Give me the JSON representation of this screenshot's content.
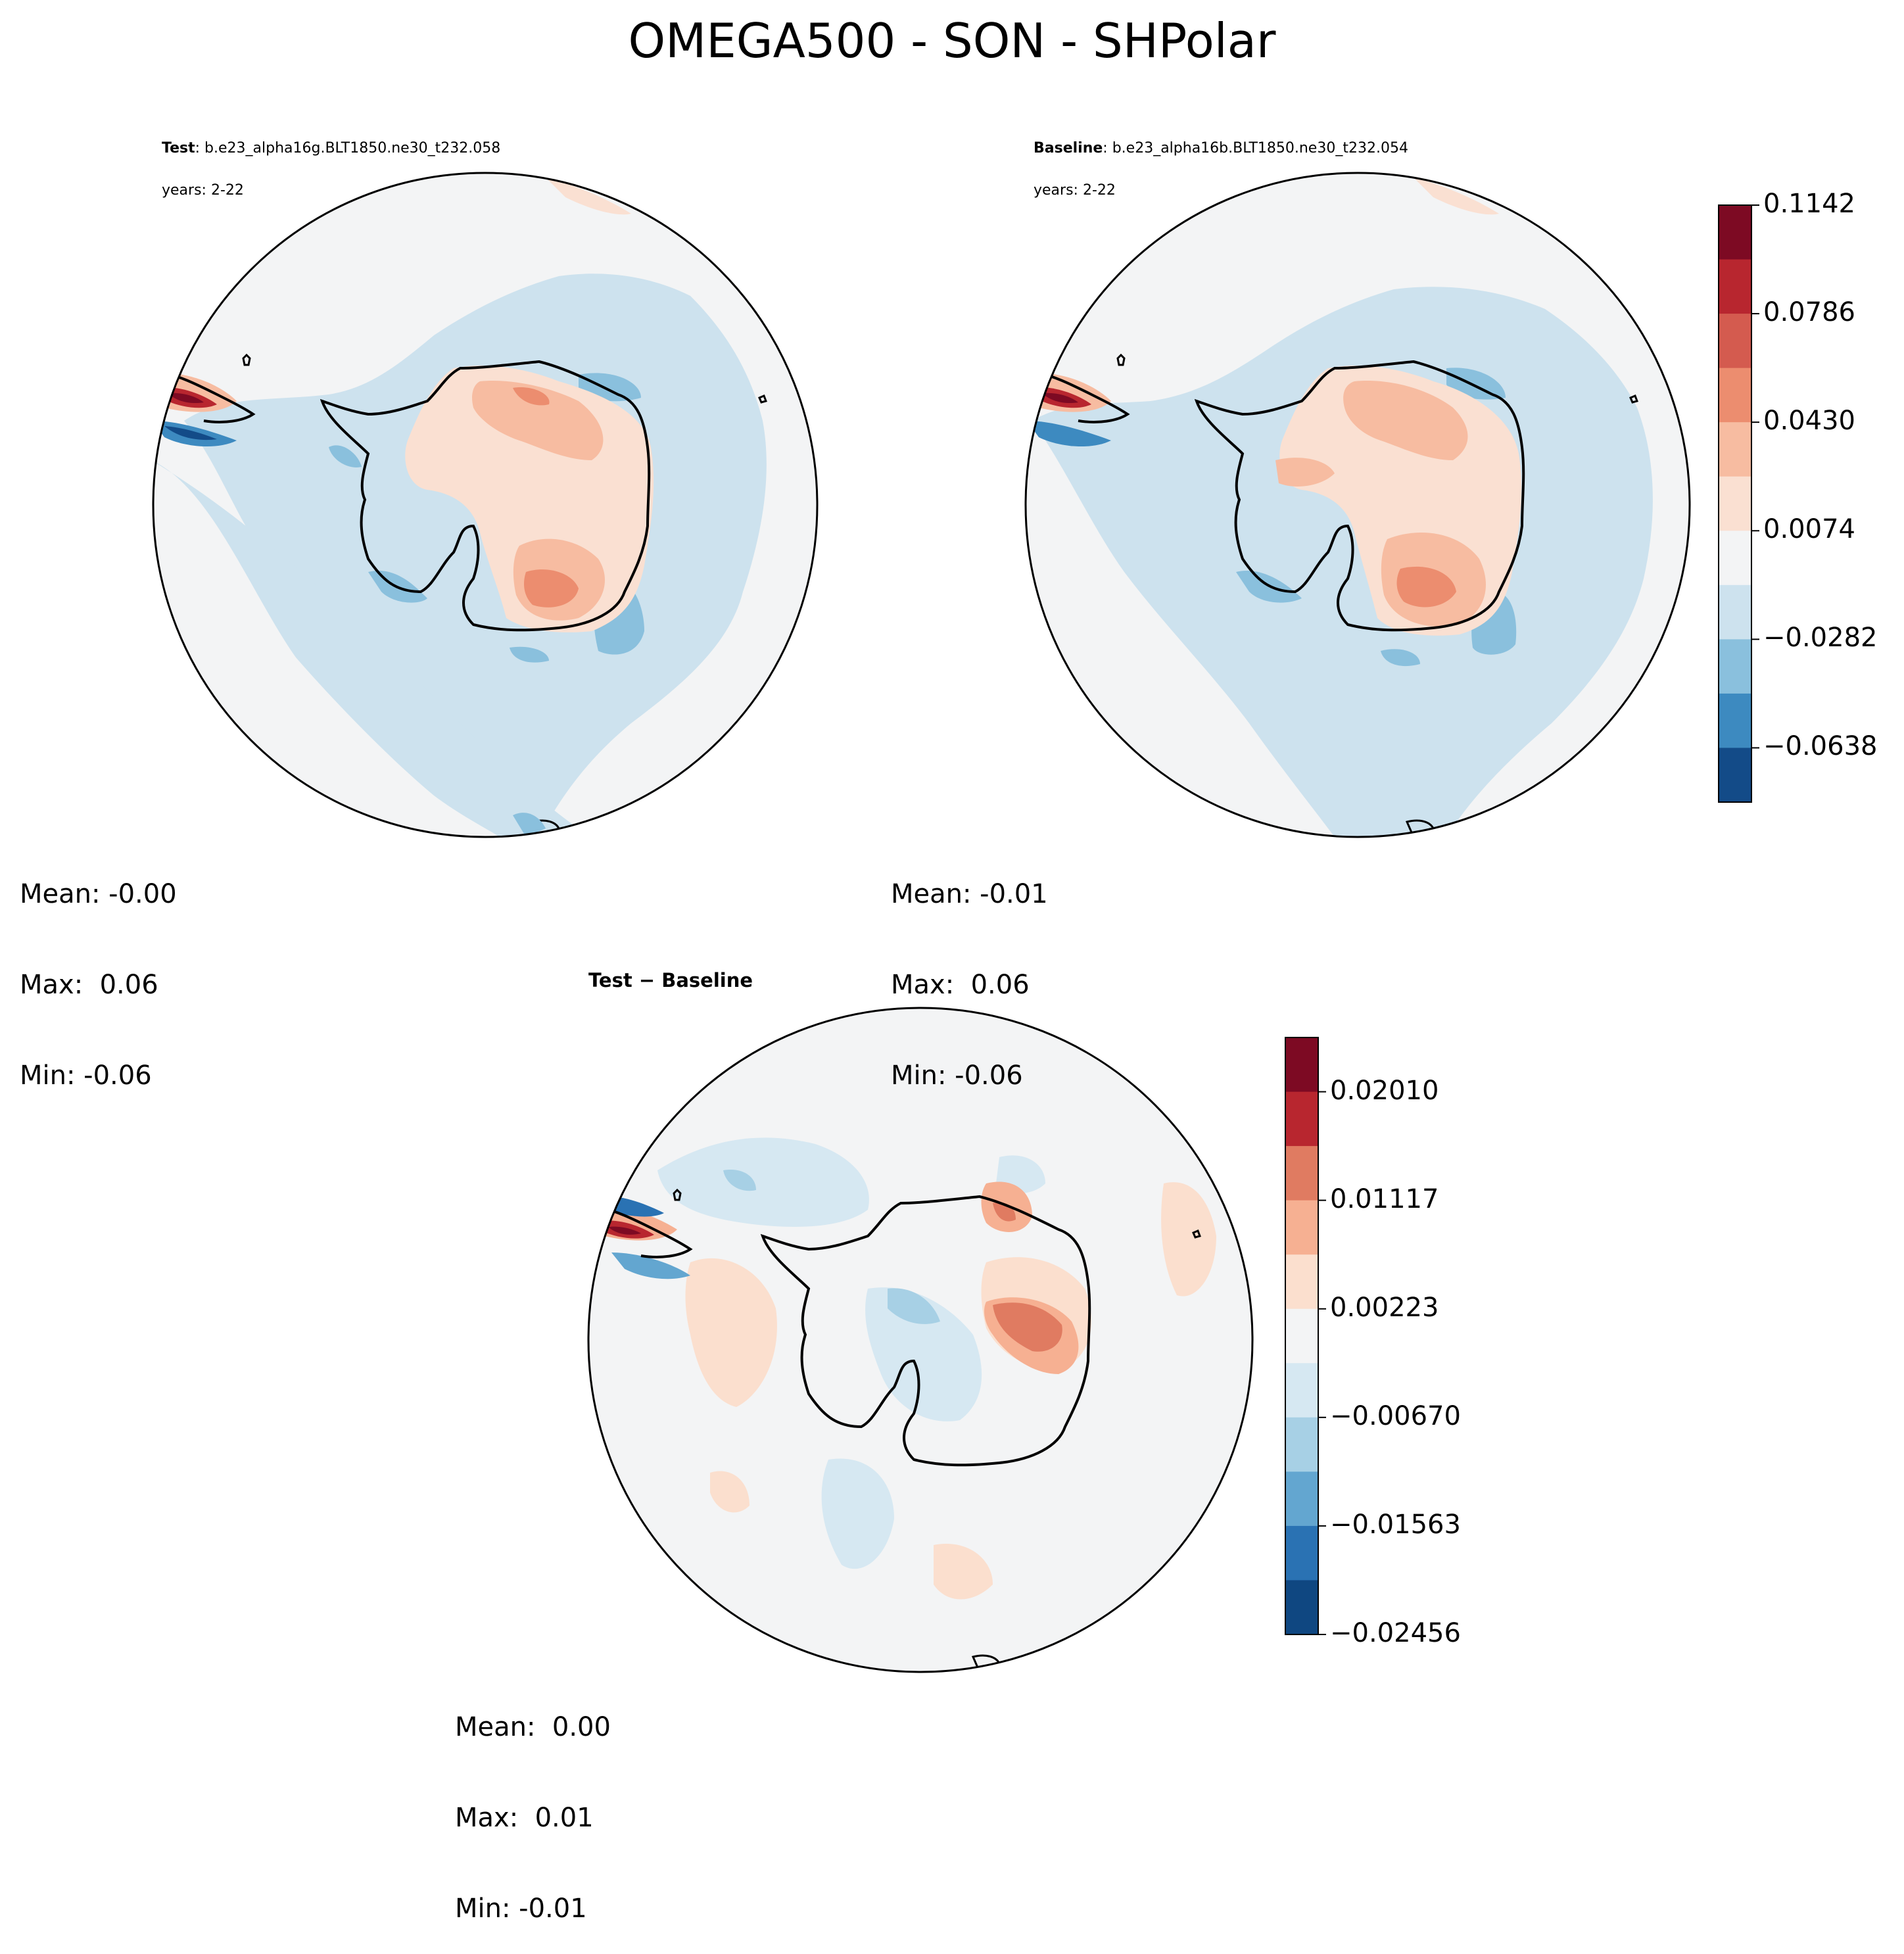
{
  "figure": {
    "title": "OMEGA500 - SON - SHPolar"
  },
  "panels": {
    "test": {
      "label": "Test",
      "case": "b.e23_alpha16g.BLT1850.ne30_t232.058",
      "years": "years: 2-22",
      "stats": {
        "mean": "Mean: -0.00",
        "max": "Max:  0.06",
        "min": "Min: -0.06"
      }
    },
    "baseline": {
      "label": "Baseline",
      "case": "b.e23_alpha16b.BLT1850.ne30_t232.054",
      "years": "years: 2-22",
      "stats": {
        "mean": "Mean: -0.01",
        "max": "Max:  0.06",
        "min": "Min: -0.06"
      }
    },
    "diff": {
      "title": "Test − Baseline",
      "stats": {
        "mean": "Mean:  0.00",
        "max": "Max:  0.01",
        "min": "Min: -0.01"
      }
    }
  },
  "colorbars": {
    "main": {
      "ticks": [
        "0.1142",
        "0.0786",
        "0.0430",
        "0.0074",
        "−0.0282",
        "−0.0638"
      ],
      "colors": [
        "#7d0a23",
        "#b8262f",
        "#d45b4f",
        "#ec8d6f",
        "#f7bca1",
        "#fae0d2",
        "#f3f4f5",
        "#cde2ee",
        "#8ac0dd",
        "#3d8ac0",
        "#134b88"
      ]
    },
    "diff": {
      "ticks": [
        "0.02010",
        "0.01117",
        "0.00223",
        "−0.00670",
        "−0.01563",
        "−0.02456"
      ],
      "colors": [
        "#7d0a23",
        "#b8262f",
        "#e07b61",
        "#f6b092",
        "#fbdfce",
        "#f3f4f5",
        "#d6e8f2",
        "#a7d0e5",
        "#63a6d0",
        "#2a72b3",
        "#0f4781"
      ]
    }
  }
}
